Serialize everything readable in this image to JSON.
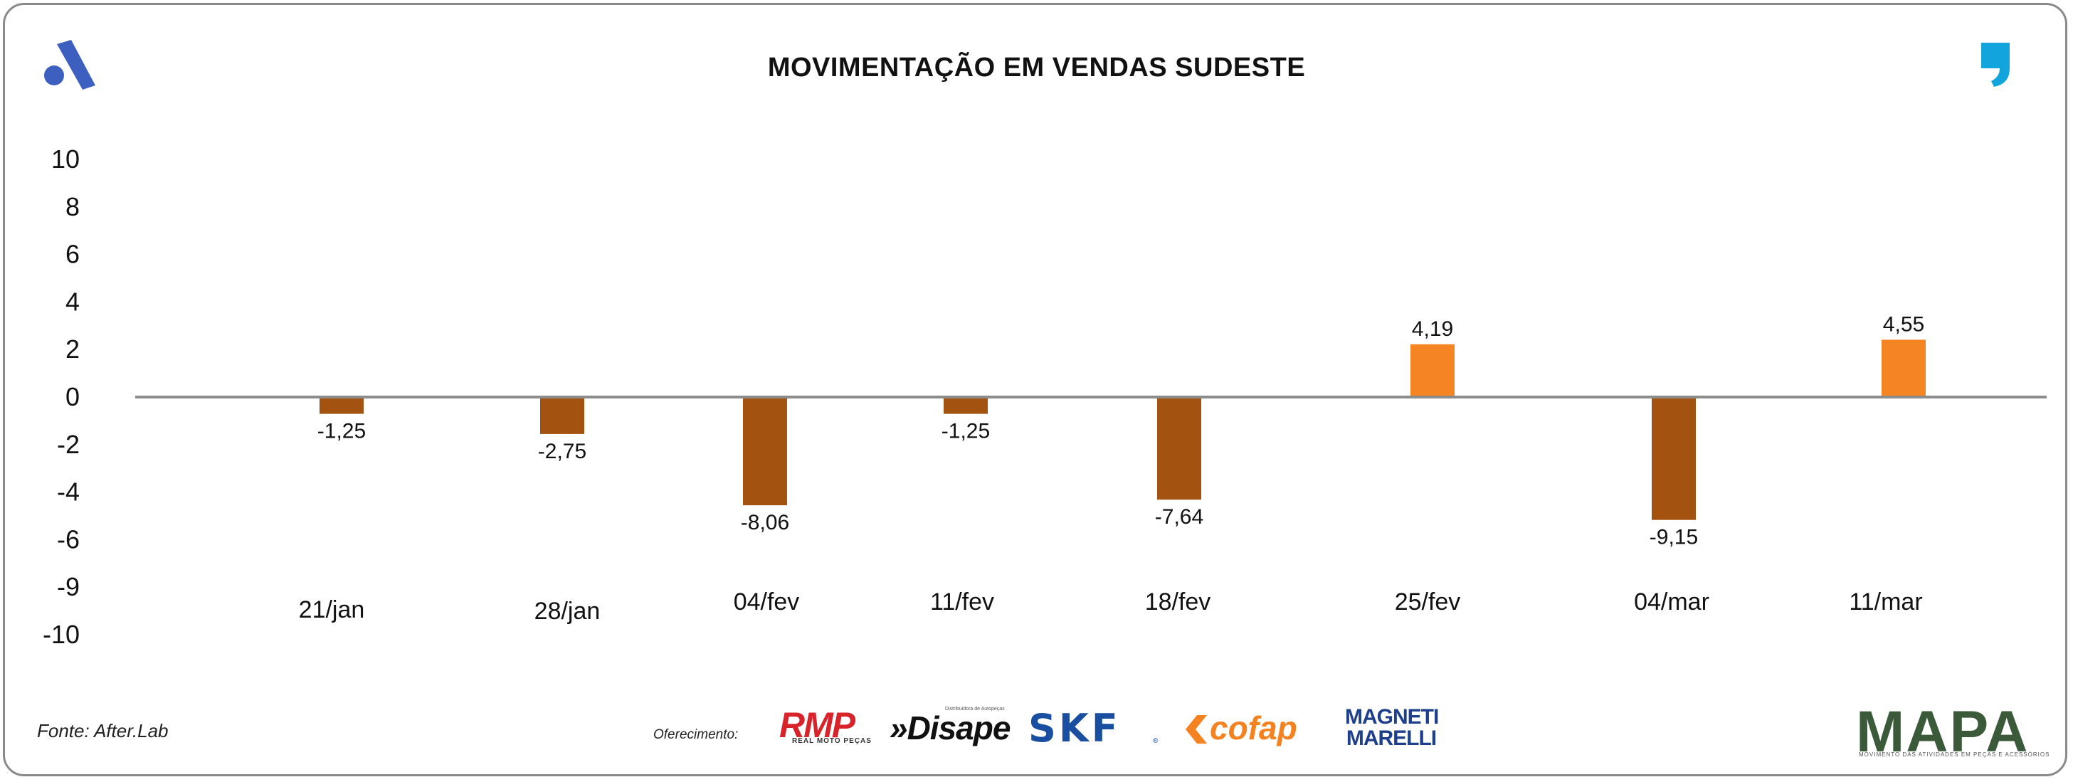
{
  "title": "MOVIMENTAÇÃO EM VENDAS SUDESTE",
  "source": "Fonte: After.Lab",
  "sponsors_label": "Oferecimento:",
  "sponsors": {
    "rmp": "RMP",
    "rmp_sub": "REAL MOTO PEÇAS",
    "disape": "»Disape",
    "disape_sub": "Distribuidora de Autopeças",
    "skf": "SKF",
    "skf_reg": "®",
    "cofap": "cofap",
    "magneti_line1": "MAGNETI",
    "magneti_line2": "MARELLI"
  },
  "brand": {
    "mapa": "MAPA",
    "mapa_sub": "MOVIMENTO DAS ATIVIDADES EM PEÇAS E ACESSÓRIOS"
  },
  "colors": {
    "negative": "#a35210",
    "positive": "#f58423",
    "axis": "#8c8c8c",
    "logo_blue": "#3d5fbf",
    "logo_cyan": "#12a4dc"
  },
  "chart_data": {
    "type": "bar",
    "title": "MOVIMENTAÇÃO EM VENDAS SUDESTE",
    "xlabel": "",
    "ylabel": "",
    "categories": [
      "21/jan",
      "28/jan",
      "04/fev",
      "11/fev",
      "18/fev",
      "25/fev",
      "04/mar",
      "11/mar"
    ],
    "values": [
      -1.25,
      -2.75,
      -8.06,
      -1.25,
      -7.64,
      4.19,
      -9.15,
      4.55
    ],
    "value_labels": [
      "-1,25",
      "-2,75",
      "-8,06",
      "-1,25",
      "-7,64",
      "4,19",
      "-9,15",
      "4,55"
    ],
    "y_ticks": [
      "10",
      "8",
      "6",
      "4",
      "2",
      "0",
      "-2",
      "-4",
      "-6",
      "-9",
      "-10"
    ],
    "grid": false,
    "legend": "none"
  }
}
